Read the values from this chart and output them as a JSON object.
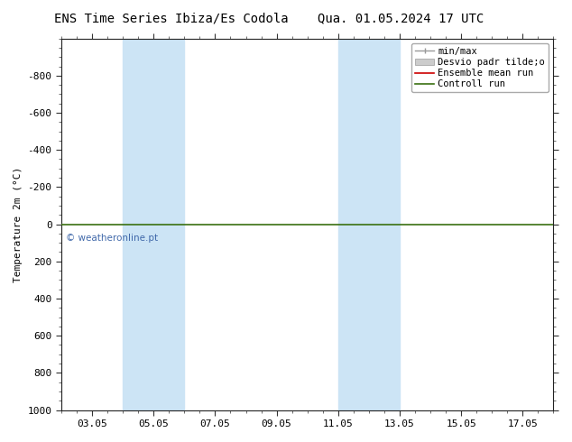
{
  "title_left": "ENS Time Series Ibiza/Es Codola",
  "title_right": "Qua. 01.05.2024 17 UTC",
  "ylabel": "Temperature 2m (°C)",
  "ylim_top": -1000,
  "ylim_bottom": 1000,
  "yticks": [
    -800,
    -600,
    -400,
    -200,
    0,
    200,
    400,
    600,
    800,
    1000
  ],
  "xlim": [
    2.0,
    18.0
  ],
  "xtick_labels": [
    "03.05",
    "05.05",
    "07.05",
    "09.05",
    "11.05",
    "13.05",
    "15.05",
    "17.05"
  ],
  "xtick_positions": [
    3,
    5,
    7,
    9,
    11,
    13,
    15,
    17
  ],
  "shaded_bands": [
    {
      "x_start": 4.0,
      "x_end": 6.0
    },
    {
      "x_start": 11.0,
      "x_end": 13.0
    }
  ],
  "shaded_color": "#cce4f5",
  "horizontal_line_y": 0,
  "line_color_green": "#3a7010",
  "line_color_red": "#cc0000",
  "watermark": "© weatheronline.pt",
  "watermark_color": "#4169aa",
  "bg_color": "#ffffff",
  "title_fontsize": 10,
  "tick_fontsize": 8,
  "ylabel_fontsize": 8,
  "legend_fontsize": 7.5
}
